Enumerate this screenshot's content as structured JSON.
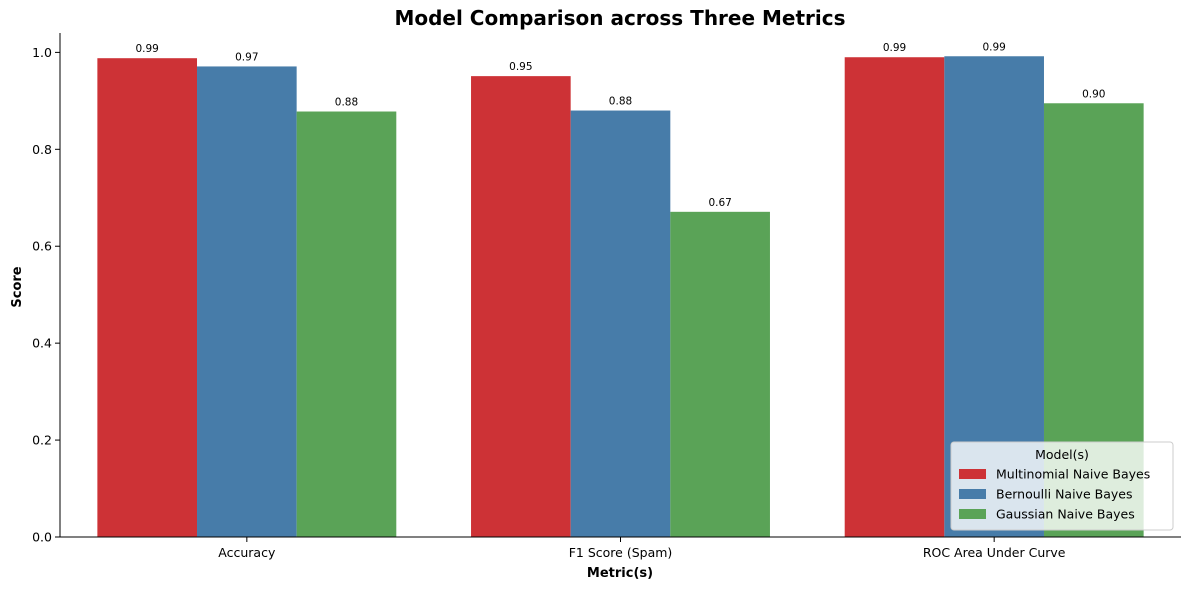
{
  "chart_data": {
    "type": "bar",
    "title": "Model Comparison across Three Metrics",
    "xlabel": "Metric(s)",
    "ylabel": "Score",
    "categories": [
      "Accuracy",
      "F1 Score (Spam)",
      "ROC Area Under Curve"
    ],
    "ylim": [
      0,
      1.04
    ],
    "yticks": [
      "0.0",
      "0.2",
      "0.4",
      "0.6",
      "0.8",
      "1.0"
    ],
    "series": [
      {
        "name": "Multinomial Naive Bayes",
        "color": "#cd3236",
        "values": [
          0.988,
          0.951,
          0.99
        ],
        "labels": [
          "0.99",
          "0.95",
          "0.99"
        ]
      },
      {
        "name": "Bernoulli Naive Bayes",
        "color": "#477ca9",
        "values": [
          0.971,
          0.88,
          0.992
        ],
        "labels": [
          "0.97",
          "0.88",
          "0.99"
        ]
      },
      {
        "name": "Gaussian Naive Bayes",
        "color": "#5aa357",
        "values": [
          0.878,
          0.671,
          0.895
        ],
        "labels": [
          "0.88",
          "0.67",
          "0.90"
        ]
      }
    ],
    "legend": {
      "title": "Model(s)",
      "placement": "lower-right"
    },
    "grid": false
  }
}
